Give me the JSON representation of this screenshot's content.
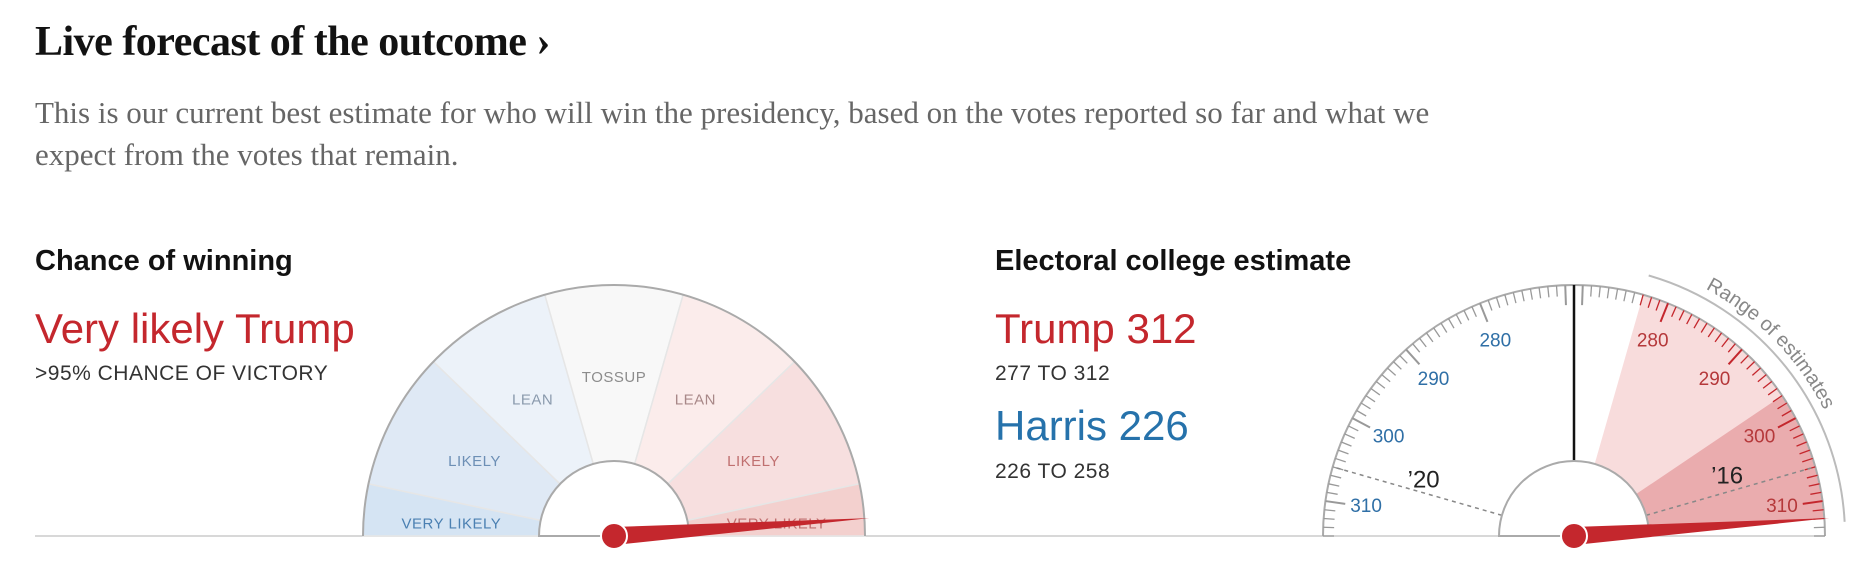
{
  "header": {
    "title": "Live forecast of the outcome ›",
    "description": "This is our current best estimate for who will win the presidency, based on the votes reported so far and what we expect from the votes that remain."
  },
  "chance": {
    "heading": "Chance of winning",
    "verdict": "Very likely Trump",
    "detail": ">95% CHANCE OF VICTORY",
    "segments": [
      "VERY LIKELY",
      "LIKELY",
      "LEAN",
      "TOSSUP",
      "LEAN",
      "LIKELY",
      "VERY LIKELY"
    ]
  },
  "electoral": {
    "heading": "Electoral college estimate",
    "candidates": [
      {
        "name": "Trump 312",
        "range": "277 TO 312"
      },
      {
        "name": "Harris 226",
        "range": "226 TO 258"
      }
    ],
    "harris_ticks": [
      "280",
      "290",
      "300",
      "310"
    ],
    "trump_ticks": [
      "280",
      "290",
      "300",
      "310"
    ],
    "markers": [
      "’20",
      "’16"
    ],
    "range_label": "Range of estimates"
  }
}
